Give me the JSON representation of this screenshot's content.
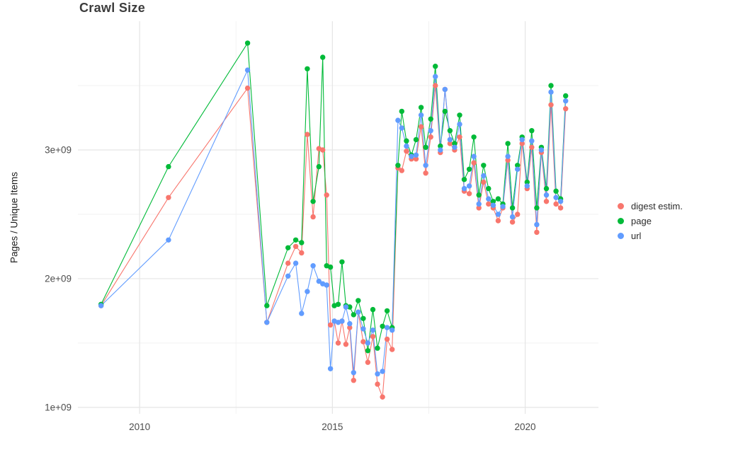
{
  "chart_data": {
    "type": "line",
    "title": "Crawl Size",
    "xlabel": "",
    "ylabel": "Pages / Unique Items",
    "y_unit": "1e9 (billions of pages / unique items)",
    "x_unit": "year (decimal)",
    "grid": true,
    "legend_position": "right",
    "xlim": [
      2008.4,
      2021.9
    ],
    "ylim": [
      0.95,
      4.0
    ],
    "x_ticks": [
      {
        "value": 2010,
        "label": "2010"
      },
      {
        "value": 2015,
        "label": "2015"
      },
      {
        "value": 2020,
        "label": "2020"
      }
    ],
    "y_ticks": [
      {
        "value": 1,
        "label": "1e+09"
      },
      {
        "value": 2,
        "label": "2e+09"
      },
      {
        "value": 3,
        "label": "3e+09"
      }
    ],
    "x_minor_ticks": [
      2012.5,
      2017.5
    ],
    "y_minor_ticks": [
      1.5,
      2.5,
      3.5
    ],
    "x": [
      2009.0,
      2010.75,
      2012.8,
      2013.3,
      2013.85,
      2014.05,
      2014.2,
      2014.35,
      2014.5,
      2014.65,
      2014.75,
      2014.85,
      2014.95,
      2015.05,
      2015.15,
      2015.25,
      2015.35,
      2015.45,
      2015.55,
      2015.67,
      2015.8,
      2015.92,
      2016.05,
      2016.17,
      2016.3,
      2016.42,
      2016.55,
      2016.7,
      2016.8,
      2016.92,
      2017.05,
      2017.17,
      2017.3,
      2017.42,
      2017.55,
      2017.67,
      2017.8,
      2017.92,
      2018.05,
      2018.17,
      2018.3,
      2018.42,
      2018.55,
      2018.67,
      2018.8,
      2018.92,
      2019.05,
      2019.17,
      2019.3,
      2019.42,
      2019.55,
      2019.67,
      2019.8,
      2019.92,
      2020.05,
      2020.17,
      2020.3,
      2020.42,
      2020.55,
      2020.67,
      2020.8,
      2020.92,
      2021.05
    ],
    "series": [
      {
        "name": "digest estim.",
        "color": "#F8766D",
        "values": [
          1.79,
          2.63,
          3.48,
          1.66,
          2.12,
          2.25,
          2.2,
          3.12,
          2.48,
          3.01,
          3.0,
          2.65,
          1.64,
          1.67,
          1.5,
          1.67,
          1.49,
          1.62,
          1.21,
          1.74,
          1.51,
          1.35,
          1.55,
          1.18,
          1.08,
          1.53,
          1.45,
          2.86,
          2.84,
          2.99,
          2.93,
          2.93,
          3.18,
          2.82,
          3.1,
          3.5,
          2.98,
          3.47,
          3.05,
          3.0,
          3.1,
          2.68,
          2.66,
          2.9,
          2.55,
          2.75,
          2.58,
          2.55,
          2.45,
          2.55,
          2.92,
          2.44,
          2.5,
          3.05,
          2.7,
          3.02,
          2.36,
          2.98,
          2.6,
          3.35,
          2.58,
          2.55,
          3.32
        ]
      },
      {
        "name": "page",
        "color": "#00BA38",
        "values": [
          1.8,
          2.87,
          3.83,
          1.79,
          2.24,
          2.3,
          2.28,
          3.63,
          2.6,
          2.87,
          3.72,
          2.1,
          2.09,
          1.79,
          1.8,
          2.13,
          1.79,
          1.78,
          1.72,
          1.83,
          1.69,
          1.44,
          1.76,
          1.46,
          1.63,
          1.75,
          1.62,
          2.88,
          3.3,
          3.07,
          2.96,
          3.08,
          3.33,
          3.02,
          3.24,
          3.65,
          3.03,
          3.3,
          3.15,
          3.05,
          3.27,
          2.77,
          2.85,
          3.1,
          2.65,
          2.88,
          2.7,
          2.6,
          2.62,
          2.58,
          3.05,
          2.55,
          2.88,
          3.1,
          2.75,
          3.15,
          2.55,
          3.02,
          2.7,
          3.5,
          2.68,
          2.62,
          3.42
        ]
      },
      {
        "name": "url",
        "color": "#619CFF",
        "values": [
          1.79,
          2.3,
          3.62,
          1.66,
          2.02,
          2.12,
          1.73,
          1.9,
          2.1,
          1.98,
          1.96,
          1.95,
          1.3,
          1.67,
          1.66,
          1.67,
          1.78,
          1.65,
          1.27,
          1.74,
          1.61,
          1.5,
          1.6,
          1.26,
          1.28,
          1.62,
          1.6,
          3.23,
          3.17,
          3.03,
          2.95,
          2.96,
          3.27,
          2.88,
          3.15,
          3.57,
          3.0,
          3.47,
          3.08,
          3.02,
          3.2,
          2.7,
          2.72,
          2.95,
          2.58,
          2.8,
          2.62,
          2.57,
          2.5,
          2.56,
          2.95,
          2.48,
          2.85,
          3.08,
          2.72,
          3.07,
          2.42,
          3.0,
          2.65,
          3.45,
          2.63,
          2.6,
          3.38
        ]
      }
    ]
  }
}
